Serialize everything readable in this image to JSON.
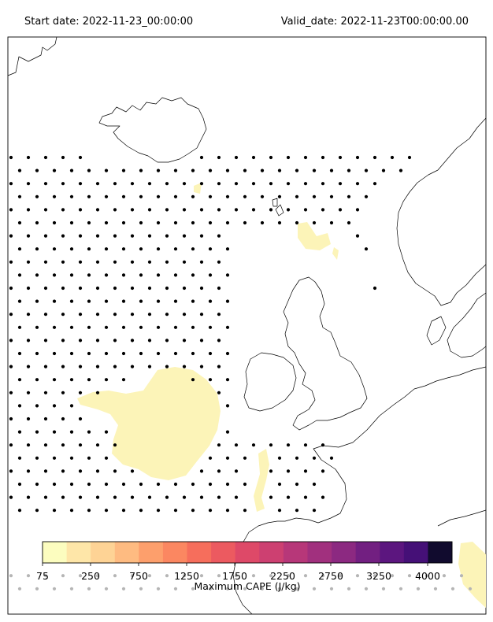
{
  "header": {
    "start_label": "Start date: 2022-11-23_00:00:00",
    "valid_label": "Valid_date: 2022-11-23T00:00:00.00"
  },
  "map": {
    "variable": "Maximum CAPE",
    "region": "North Atlantic / NW Europe",
    "stipple_marker": "dot"
  },
  "colorbar": {
    "label": "Maximum CAPE (J/kg)",
    "tick_labels": [
      "75",
      "250",
      "750",
      "1250",
      "1750",
      "2250",
      "2750",
      "3250",
      "4000"
    ],
    "colors": [
      "#fcfdbf",
      "#fee6a8",
      "#fed395",
      "#febb81",
      "#fd9f6c",
      "#fb8761",
      "#f66e5c",
      "#ec5a60",
      "#de4968",
      "#cd4071",
      "#b73779",
      "#a1307e",
      "#8c2981",
      "#721f81",
      "#5c167f",
      "#451077",
      "#110b2e"
    ]
  }
}
